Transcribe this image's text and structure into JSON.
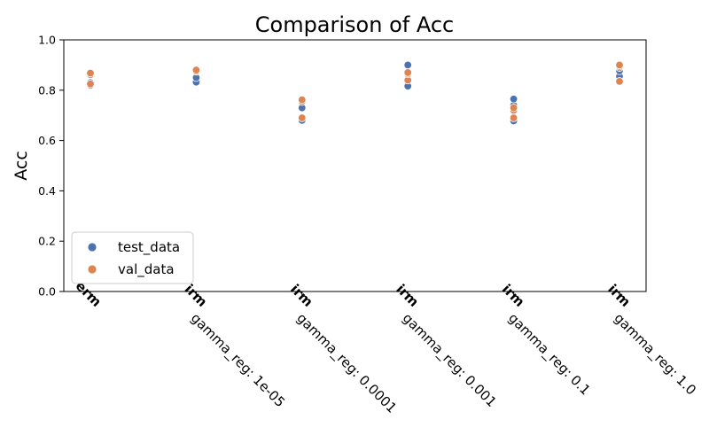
{
  "chart_data": {
    "type": "scatter",
    "title": "Comparison of Acc",
    "xlabel": "",
    "ylabel": "Acc",
    "ylim": [
      0.0,
      1.0
    ],
    "yticks": [
      "0.0",
      "0.2",
      "0.4",
      "0.6",
      "0.8",
      "1.0"
    ],
    "categories": [
      {
        "method": "erm",
        "param": ""
      },
      {
        "method": "irm",
        "param": "gamma_reg: 1e-05"
      },
      {
        "method": "irm",
        "param": "gamma_reg: 0.0001"
      },
      {
        "method": "irm",
        "param": "gamma_reg: 0.001"
      },
      {
        "method": "irm",
        "param": "gamma_reg: 0.1"
      },
      {
        "method": "irm",
        "param": "gamma_reg: 1.0"
      }
    ],
    "series": [
      {
        "name": "test_data",
        "color": "#4c72b0",
        "values": [
          [
            0.82,
            0.825,
            0.83
          ],
          [
            0.832,
            0.85,
            0.878
          ],
          [
            0.68,
            0.73,
            0.76
          ],
          [
            0.816,
            0.86,
            0.9
          ],
          [
            0.678,
            0.74,
            0.765
          ],
          [
            0.855,
            0.877,
            0.89
          ]
        ]
      },
      {
        "name": "val_data",
        "color": "#dd8452",
        "values": [
          [
            0.825,
            0.862,
            0.868
          ],
          [
            0.875,
            0.882,
            0.88
          ],
          [
            0.69,
            0.755,
            0.762
          ],
          [
            0.84,
            0.865,
            0.87
          ],
          [
            0.69,
            0.72,
            0.73
          ],
          [
            0.835,
            0.895,
            0.9
          ]
        ]
      }
    ],
    "legend": "lower-left",
    "grid": false
  }
}
